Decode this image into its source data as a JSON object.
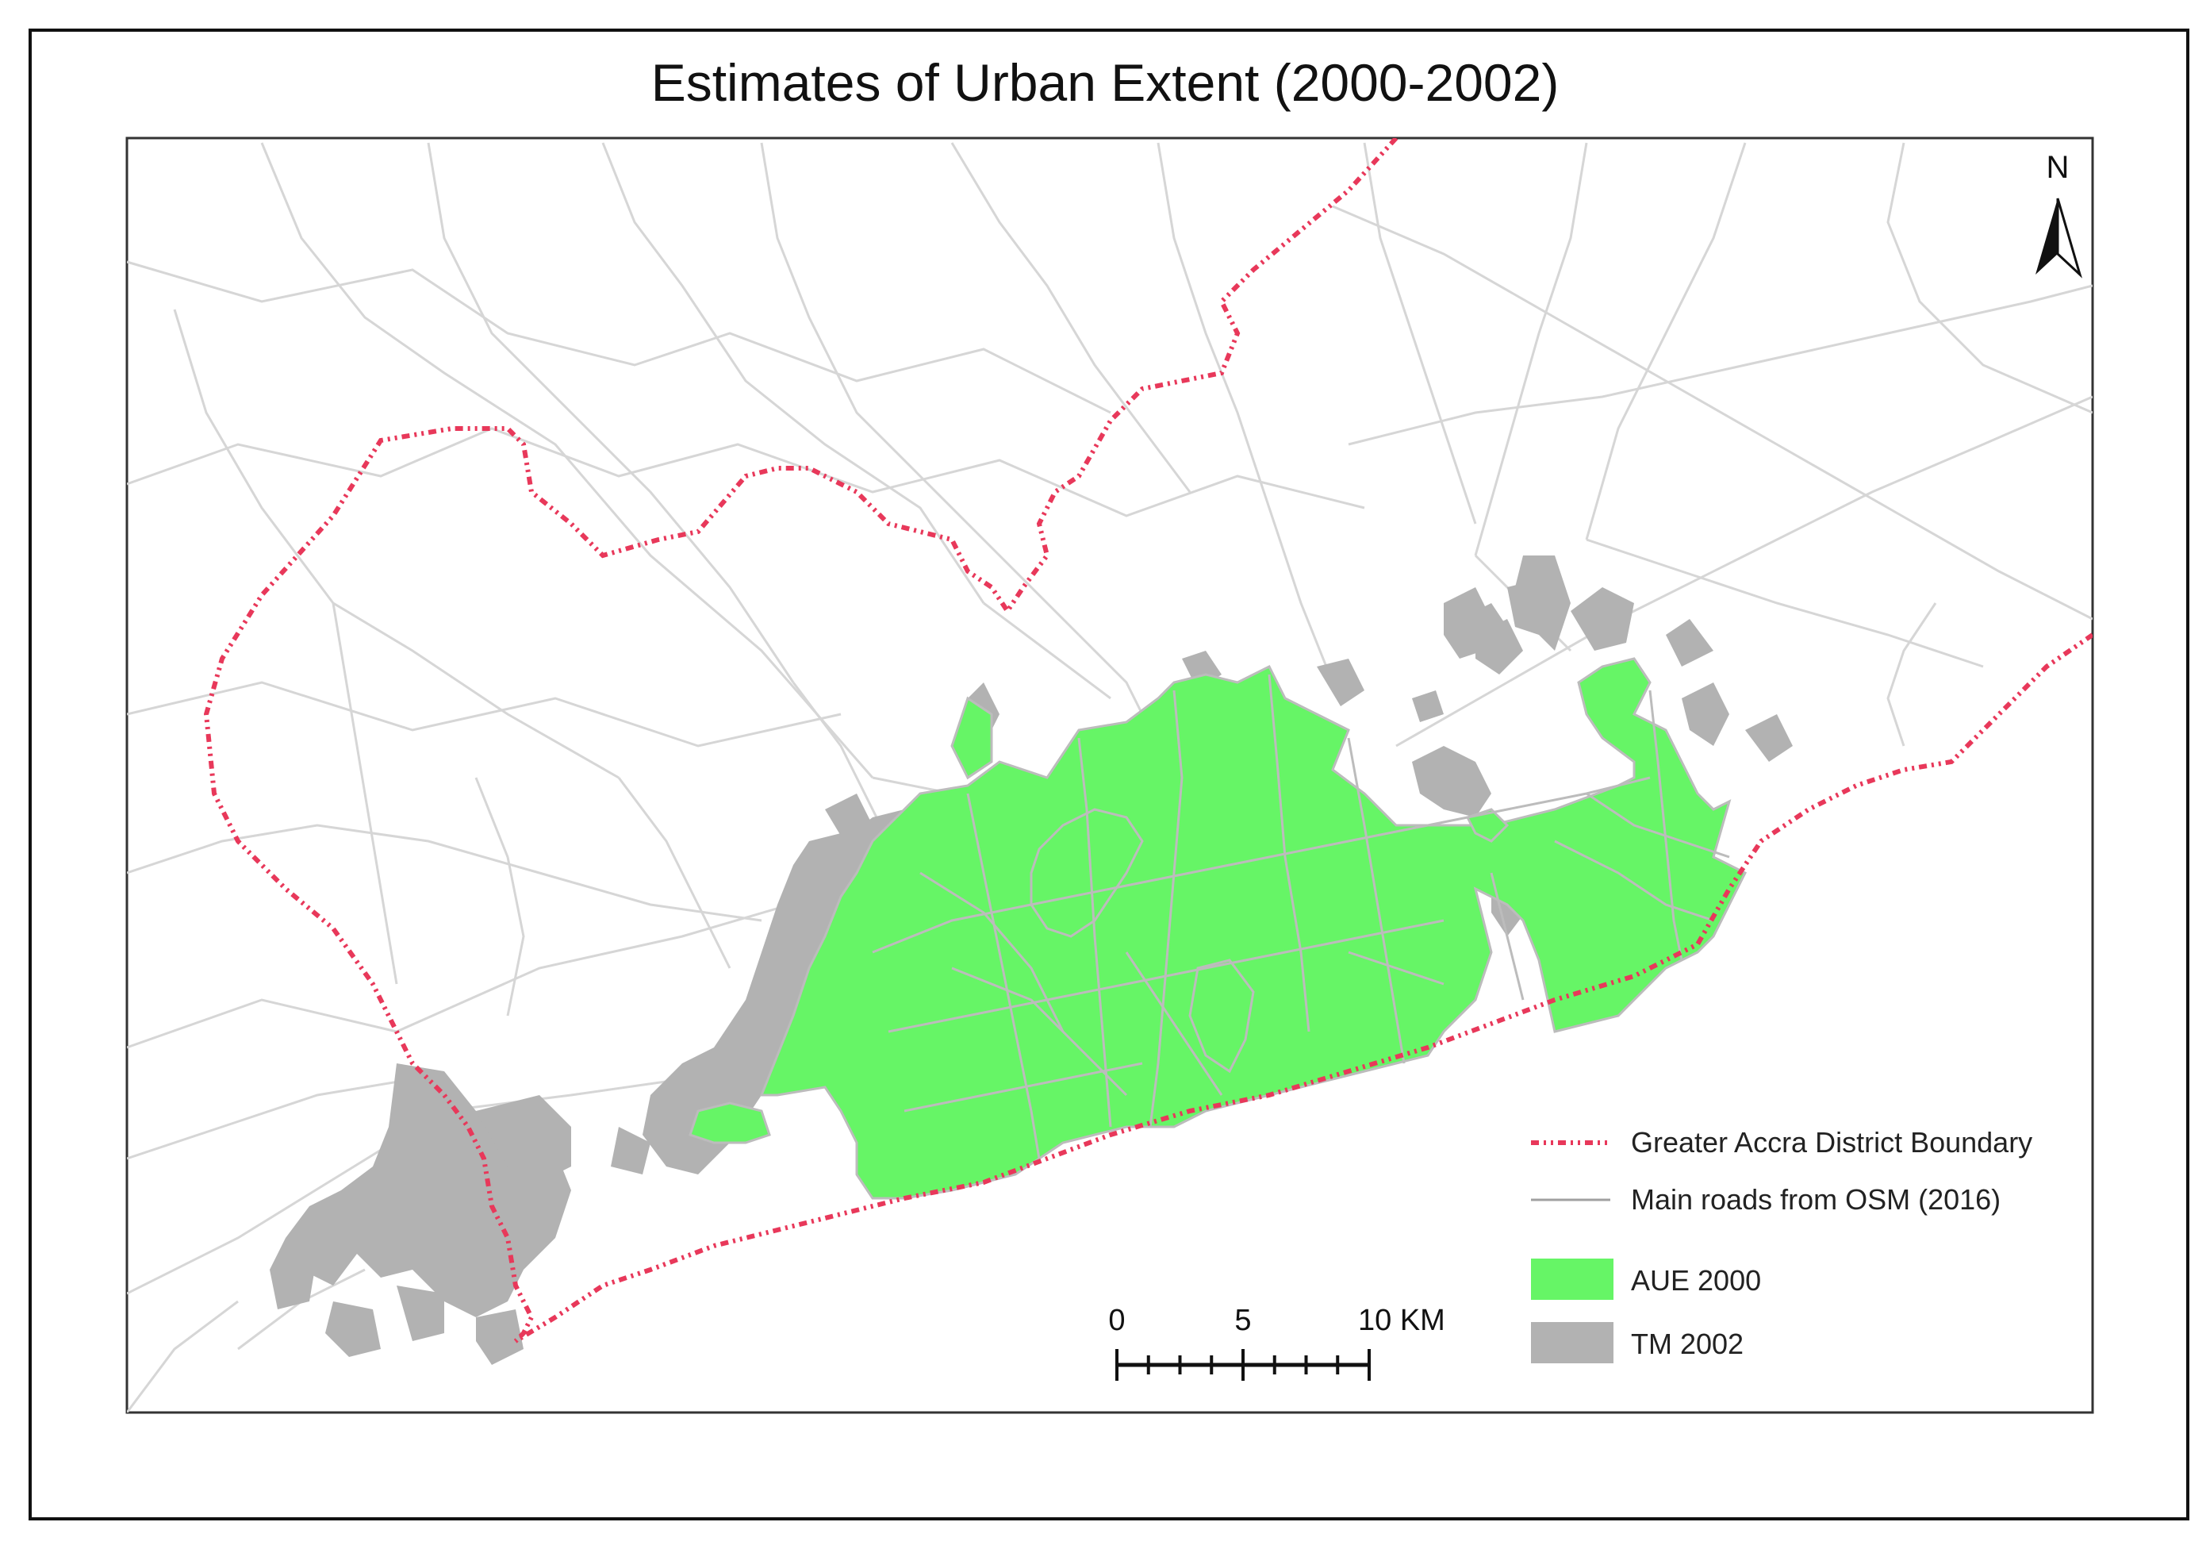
{
  "title": "Estimates of Urban Extent (2000-2002)",
  "north_label": "N",
  "legend": {
    "items": [
      {
        "id": "boundary",
        "label": "Greater Accra District Boundary",
        "symbol": "dash-dot-dot-line",
        "color": "#e8385a"
      },
      {
        "id": "roads",
        "label": "Main roads from OSM (2016)",
        "symbol": "line",
        "color": "#a0a0a0"
      },
      {
        "id": "aue",
        "label": "AUE 2000",
        "symbol": "fill",
        "color": "#66f566"
      },
      {
        "id": "tm",
        "label": "TM 2002",
        "symbol": "fill",
        "color": "#b0b0b0"
      }
    ]
  },
  "scale_bar": {
    "labels": [
      "0",
      "5",
      "10 KM"
    ],
    "max_km": 10,
    "minor_divisions": 8
  },
  "colors": {
    "road_line": "#d6d6d6",
    "urban_road": "#bcbcbc",
    "boundary": "#e8385a",
    "aue_fill": "#66f566",
    "tm_fill": "#b2b2b2",
    "frame": "#111111"
  }
}
